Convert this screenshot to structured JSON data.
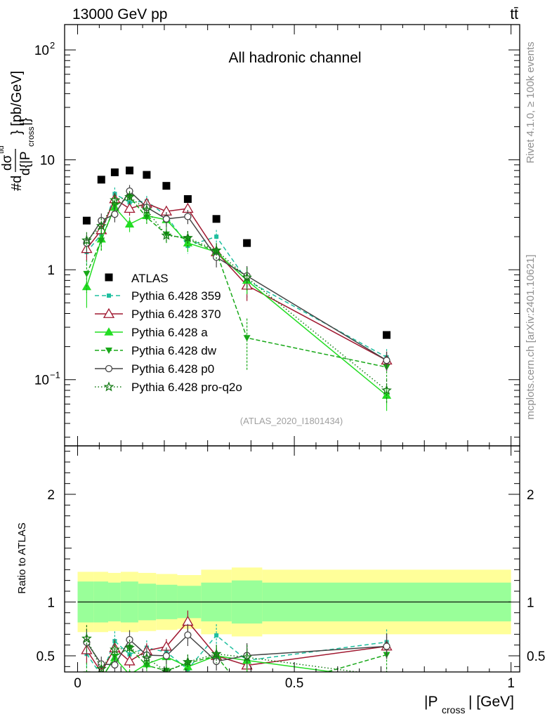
{
  "header": {
    "energy_label": "13000 GeV pp",
    "process_label": "tt̄"
  },
  "side_labels": {
    "rivet": "Rivet 4.1.0, ≥ 100k events",
    "source": "mcplots.cern.ch [arXiv:2401.10621]"
  },
  "chart_data": {
    "type": "line",
    "title": "All hadronic channel",
    "analysis_id": "(ATLAS_2020_I1801434)",
    "xlabel": "|P_cross| [GeV]",
    "ylabel": "#d dσ^{tid} / d{|P_cross|} [pb/GeV]",
    "ratio_ylabel": "Ratio to ATLAS",
    "xlim": [
      -0.03,
      1.02
    ],
    "ylim": [
      0.025,
      170
    ],
    "yscale": "log",
    "ratio_ylim": [
      0.35,
      2.45
    ],
    "x_ticks": [
      "0",
      "0.5",
      "1"
    ],
    "y_ticks": [
      "10^-1",
      "1",
      "10",
      "10^2"
    ],
    "ratio_ticks": [
      "0.5",
      "1",
      "2"
    ],
    "x": [
      0.0209,
      0.0547,
      0.0857,
      0.1199,
      0.1594,
      0.2048,
      0.2542,
      0.3202,
      0.3907,
      0.713
    ],
    "bin_edges": [
      0.0,
      0.0371,
      0.0705,
      0.0995,
      0.14,
      0.181,
      0.23,
      0.285,
      0.3555,
      0.426,
      1.0
    ],
    "data": {
      "name": "ATLAS",
      "values": [
        2.8,
        6.6,
        7.7,
        8.0,
        7.3,
        5.8,
        4.4,
        2.9,
        1.75,
        0.255
      ],
      "ratio_band_inner": [
        0.19,
        0.19,
        0.18,
        0.19,
        0.17,
        0.16,
        0.15,
        0.18,
        0.2,
        0.18
      ],
      "ratio_band_outer": [
        0.28,
        0.28,
        0.27,
        0.28,
        0.27,
        0.26,
        0.25,
        0.3,
        0.32,
        0.3
      ]
    },
    "series": [
      {
        "name": "Pythia 6.428 359",
        "color": "#1fbf9f",
        "dash": "6,4",
        "marker": "square-filled",
        "values": [
          1.45,
          2.1,
          4.9,
          4.1,
          4.2,
          3.1,
          1.65,
          2.0,
          0.8,
          0.16
        ],
        "errors": [
          0.35,
          0.4,
          0.7,
          0.5,
          0.5,
          0.4,
          0.25,
          0.3,
          0.25,
          0.03
        ]
      },
      {
        "name": "Pythia 6.428 370",
        "color": "#a01830",
        "dash": "",
        "marker": "triangle-open",
        "values": [
          1.55,
          2.3,
          4.4,
          3.6,
          4.0,
          3.4,
          3.6,
          1.45,
          0.72,
          0.15
        ],
        "errors": [
          0.35,
          0.4,
          0.6,
          0.5,
          0.5,
          0.4,
          0.45,
          0.25,
          0.2,
          0.03
        ]
      },
      {
        "name": "Pythia 6.428 a",
        "color": "#22dd22",
        "dash": "",
        "marker": "triangle-filled",
        "values": [
          0.7,
          1.9,
          3.7,
          2.6,
          3.1,
          2.85,
          1.75,
          1.45,
          0.8,
          0.072
        ],
        "errors": [
          0.25,
          0.4,
          0.5,
          0.4,
          0.4,
          0.4,
          0.3,
          0.25,
          0.2,
          0.02
        ]
      },
      {
        "name": "Pythia 6.428 dw",
        "color": "#18a818",
        "dash": "6,3",
        "marker": "triangle-down-filled",
        "values": [
          0.92,
          1.85,
          3.8,
          4.6,
          3.0,
          2.1,
          1.9,
          1.45,
          0.24,
          0.13
        ],
        "errors": [
          0.3,
          0.4,
          0.5,
          0.6,
          0.4,
          0.35,
          0.35,
          0.25,
          0.12,
          0.03
        ]
      },
      {
        "name": "Pythia 6.428 p0",
        "color": "#444444",
        "dash": "",
        "marker": "circle-open",
        "values": [
          1.75,
          2.8,
          3.2,
          5.2,
          3.7,
          2.9,
          3.05,
          1.3,
          0.88,
          0.15
        ],
        "errors": [
          0.35,
          0.45,
          0.5,
          0.7,
          0.5,
          0.45,
          0.45,
          0.25,
          0.2,
          0.03
        ]
      },
      {
        "name": "Pythia 6.428 pro-q2o",
        "color": "#137a13",
        "dash": "1.5,3",
        "marker": "star",
        "values": [
          1.85,
          2.5,
          4.3,
          4.6,
          3.5,
          2.05,
          1.95,
          1.5,
          0.85,
          0.08
        ],
        "errors": [
          0.35,
          0.45,
          0.6,
          0.6,
          0.45,
          0.3,
          0.3,
          0.25,
          0.2,
          0.02
        ]
      }
    ]
  }
}
